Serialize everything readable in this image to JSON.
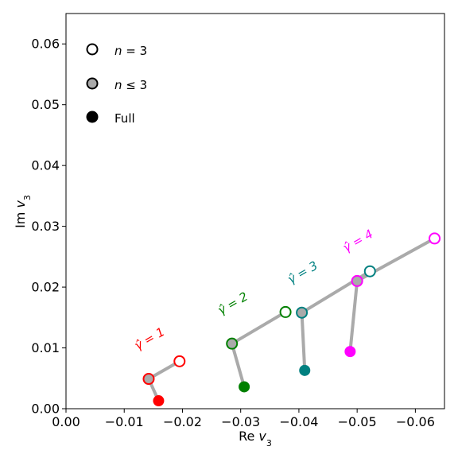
{
  "chart_data": {
    "type": "scatter",
    "xlabel": "Re v_3",
    "ylabel": "Im v_3",
    "xlim": [
      0.0,
      -0.065
    ],
    "ylim": [
      0.0,
      0.065
    ],
    "x_ticks": [
      0.0,
      -0.01,
      -0.02,
      -0.03,
      -0.04,
      -0.05,
      -0.06
    ],
    "x_tick_labels": [
      "0.00",
      "−0.01",
      "−0.02",
      "−0.03",
      "−0.04",
      "−0.05",
      "−0.06"
    ],
    "y_ticks": [
      0.0,
      0.01,
      0.02,
      0.03,
      0.04,
      0.05,
      0.06
    ],
    "y_tick_labels": [
      "0.00",
      "0.01",
      "0.02",
      "0.03",
      "0.04",
      "0.05",
      "0.06"
    ],
    "grid": false,
    "legend_position": "top-left",
    "legend": [
      {
        "style": "open",
        "label": "n = 3"
      },
      {
        "style": "gray",
        "label": "n ≤ 3"
      },
      {
        "style": "filled",
        "label": "Full"
      }
    ],
    "connector_color": "#aaaaaa",
    "groups": [
      {
        "label": "γ̂ = 1",
        "color": "#ff0000",
        "n3": [
          -0.0195,
          0.0078
        ],
        "nle3": [
          -0.0142,
          0.0049
        ],
        "full": [
          -0.0159,
          0.0013
        ]
      },
      {
        "label": "γ̂ = 2",
        "color": "#008000",
        "n3": [
          -0.0377,
          0.0159
        ],
        "nle3": [
          -0.0285,
          0.0107
        ],
        "full": [
          -0.0306,
          0.0036
        ]
      },
      {
        "label": "γ̂ = 3",
        "color": "#008080",
        "n3": [
          -0.0522,
          0.0226
        ],
        "nle3": [
          -0.0405,
          0.0158
        ],
        "full": [
          -0.041,
          0.0063
        ]
      },
      {
        "label": "γ̂ = 4",
        "color": "#ff00ff",
        "n3": [
          -0.0633,
          0.028
        ],
        "nle3": [
          -0.05,
          0.021
        ],
        "full": [
          -0.0488,
          0.0094
        ]
      }
    ]
  }
}
